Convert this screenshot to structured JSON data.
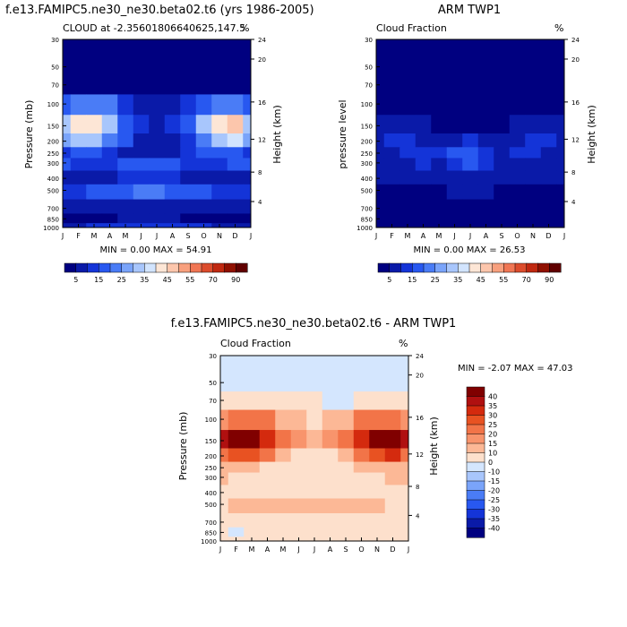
{
  "chart_data": [
    {
      "type": "heatmap",
      "id": "model",
      "title": "f.e13.FAMIPC5.ne30_ne30.beta02.t6 (yrs 1986-2005)",
      "subtitle_left": "CLOUD at -2.35601806640625,147.5",
      "subtitle_right": "%",
      "ylabel": "Pressure (mb)",
      "ylabel_right": "Height (km)",
      "months": [
        "J",
        "F",
        "M",
        "A",
        "M",
        "J",
        "J",
        "A",
        "S",
        "O",
        "N",
        "D",
        "J"
      ],
      "pressure_ticks": [
        30,
        50,
        70,
        100,
        150,
        200,
        250,
        300,
        400,
        500,
        700,
        850,
        1000
      ],
      "height_ticks": [
        24,
        20,
        16,
        12,
        8,
        4
      ],
      "stats": "MIN =  0.00 MAX = 54.91",
      "values": [
        [
          2,
          2,
          2,
          2,
          2,
          2,
          2,
          2,
          2,
          2,
          2,
          2,
          2
        ],
        [
          2,
          2,
          2,
          2,
          2,
          2,
          2,
          2,
          2,
          2,
          2,
          2,
          2
        ],
        [
          3,
          3,
          3,
          3,
          3,
          3,
          3,
          3,
          3,
          3,
          3,
          3,
          3
        ],
        [
          22,
          26,
          28,
          25,
          18,
          12,
          10,
          12,
          16,
          24,
          28,
          28,
          22
        ],
        [
          38,
          46,
          46,
          36,
          24,
          18,
          14,
          18,
          24,
          36,
          48,
          50,
          38
        ],
        [
          30,
          36,
          36,
          28,
          20,
          14,
          12,
          14,
          18,
          28,
          38,
          40,
          30
        ],
        [
          18,
          22,
          20,
          16,
          14,
          12,
          12,
          14,
          16,
          20,
          22,
          22,
          18
        ],
        [
          20,
          18,
          16,
          18,
          20,
          22,
          22,
          20,
          18,
          16,
          18,
          20,
          20
        ],
        [
          14,
          14,
          12,
          12,
          16,
          18,
          18,
          16,
          14,
          12,
          14,
          14,
          14
        ],
        [
          16,
          18,
          20,
          22,
          24,
          26,
          26,
          24,
          22,
          20,
          18,
          16,
          16
        ],
        [
          12,
          12,
          10,
          10,
          12,
          14,
          14,
          12,
          10,
          10,
          12,
          12,
          12
        ],
        [
          8,
          8,
          8,
          8,
          10,
          10,
          10,
          10,
          8,
          8,
          8,
          8,
          8
        ],
        [
          14,
          14,
          16,
          16,
          16,
          16,
          16,
          16,
          16,
          16,
          14,
          14,
          14
        ]
      ]
    },
    {
      "type": "heatmap",
      "id": "obs",
      "title": "ARM TWP1",
      "subtitle_left": "Cloud Fraction",
      "subtitle_right": "%",
      "ylabel": "pressure level",
      "ylabel_right": "Height (km)",
      "months": [
        "J",
        "F",
        "M",
        "A",
        "M",
        "J",
        "J",
        "A",
        "S",
        "O",
        "N",
        "D",
        "J"
      ],
      "pressure_ticks": [
        30,
        50,
        70,
        100,
        150,
        200,
        250,
        300,
        400,
        500,
        700,
        850,
        1000
      ],
      "height_ticks": [
        24,
        20,
        16,
        12,
        8,
        4
      ],
      "stats": "MIN =  0.00 MAX = 26.53",
      "values": [
        [
          2,
          2,
          2,
          2,
          2,
          2,
          2,
          2,
          2,
          2,
          2,
          2,
          2
        ],
        [
          2,
          2,
          2,
          2,
          2,
          2,
          2,
          2,
          2,
          2,
          2,
          2,
          2
        ],
        [
          2,
          2,
          2,
          2,
          2,
          2,
          2,
          2,
          2,
          2,
          2,
          2,
          2
        ],
        [
          3,
          4,
          4,
          4,
          3,
          3,
          3,
          3,
          3,
          4,
          4,
          4,
          3
        ],
        [
          10,
          12,
          12,
          10,
          8,
          8,
          8,
          8,
          8,
          10,
          12,
          12,
          10
        ],
        [
          14,
          16,
          16,
          14,
          12,
          14,
          18,
          14,
          12,
          14,
          16,
          16,
          14
        ],
        [
          14,
          14,
          16,
          18,
          16,
          20,
          24,
          18,
          14,
          16,
          16,
          14,
          14
        ],
        [
          12,
          12,
          14,
          16,
          14,
          18,
          20,
          16,
          12,
          14,
          14,
          12,
          12
        ],
        [
          10,
          10,
          12,
          10,
          10,
          12,
          14,
          12,
          10,
          10,
          10,
          10,
          10
        ],
        [
          8,
          8,
          8,
          6,
          8,
          10,
          10,
          10,
          8,
          8,
          8,
          8,
          8
        ],
        [
          6,
          6,
          5,
          4,
          6,
          8,
          8,
          8,
          6,
          6,
          6,
          6,
          6
        ],
        [
          6,
          6,
          6,
          5,
          6,
          6,
          6,
          6,
          6,
          6,
          6,
          6,
          6
        ],
        [
          5,
          5,
          5,
          5,
          5,
          5,
          5,
          5,
          5,
          5,
          5,
          5,
          5
        ]
      ]
    },
    {
      "type": "heatmap",
      "id": "diff",
      "title": "f.e13.FAMIPC5.ne30_ne30.beta02.t6 - ARM TWP1",
      "subtitle_left": "Cloud Fraction",
      "subtitle_right": "%",
      "ylabel": "Pressure (mb)",
      "ylabel_right": "Height (km)",
      "months": [
        "J",
        "F",
        "M",
        "A",
        "M",
        "J",
        "J",
        "A",
        "S",
        "O",
        "N",
        "D",
        "J"
      ],
      "pressure_ticks": [
        30,
        50,
        70,
        100,
        150,
        200,
        250,
        300,
        400,
        500,
        700,
        850,
        1000
      ],
      "height_ticks": [
        24,
        20,
        16,
        12,
        8,
        4
      ],
      "stats": "MIN = -2.07 MAX = 47.03",
      "values": [
        [
          -2,
          -2,
          -2,
          -2,
          -2,
          -2,
          -2,
          -2,
          -2,
          -2,
          -2,
          -2,
          -2
        ],
        [
          -2,
          -2,
          -2,
          -2,
          -2,
          -2,
          -2,
          -2,
          -2,
          -2,
          -2,
          -2,
          -2
        ],
        [
          4,
          4,
          4,
          4,
          4,
          4,
          4,
          -2,
          -2,
          4,
          4,
          4,
          4
        ],
        [
          18,
          20,
          22,
          20,
          14,
          10,
          8,
          10,
          12,
          20,
          22,
          22,
          18
        ],
        [
          36,
          42,
          42,
          34,
          22,
          16,
          12,
          16,
          22,
          34,
          44,
          46,
          36
        ],
        [
          22,
          26,
          26,
          20,
          12,
          6,
          4,
          6,
          10,
          20,
          28,
          30,
          22
        ],
        [
          12,
          14,
          12,
          8,
          6,
          4,
          4,
          6,
          8,
          12,
          14,
          14,
          12
        ],
        [
          10,
          8,
          6,
          6,
          8,
          8,
          6,
          6,
          6,
          6,
          8,
          10,
          10
        ],
        [
          6,
          6,
          4,
          4,
          6,
          6,
          6,
          6,
          6,
          4,
          6,
          6,
          6
        ],
        [
          8,
          10,
          12,
          14,
          12,
          10,
          10,
          10,
          12,
          12,
          10,
          8,
          8
        ],
        [
          6,
          6,
          6,
          6,
          6,
          6,
          6,
          6,
          6,
          6,
          6,
          6,
          6
        ],
        [
          2,
          -2,
          4,
          4,
          4,
          4,
          4,
          4,
          4,
          4,
          4,
          4,
          2
        ],
        [
          6,
          6,
          6,
          6,
          6,
          6,
          6,
          6,
          6,
          6,
          6,
          6,
          6
        ]
      ]
    }
  ],
  "colorbar_abs": {
    "labels": [
      "5",
      "15",
      "25",
      "35",
      "45",
      "55",
      "70",
      "90"
    ],
    "colors": [
      "#000080",
      "#0a1aa8",
      "#1434d8",
      "#2858f0",
      "#4a7cf6",
      "#7aa4fa",
      "#a8c6fc",
      "#d2e4fe",
      "#fde6d6",
      "#fcc6ac",
      "#f8a07e",
      "#f07654",
      "#dc4c2c",
      "#c02810",
      "#901000",
      "#600000"
    ]
  },
  "colorbar_diff": {
    "labels": [
      "40",
      "35",
      "30",
      "25",
      "20",
      "15",
      "10",
      "0",
      "-10",
      "-15",
      "-20",
      "-25",
      "-30",
      "-35",
      "-40"
    ],
    "colors": [
      "#800000",
      "#b01010",
      "#d42a0e",
      "#e85222",
      "#f27448",
      "#f8946c",
      "#fcb896",
      "#fde0cc",
      "#d4e6fe",
      "#a8c6fc",
      "#7aa4fa",
      "#4a7cf6",
      "#2858f0",
      "#1434d8",
      "#0a1aa8",
      "#000080"
    ]
  }
}
